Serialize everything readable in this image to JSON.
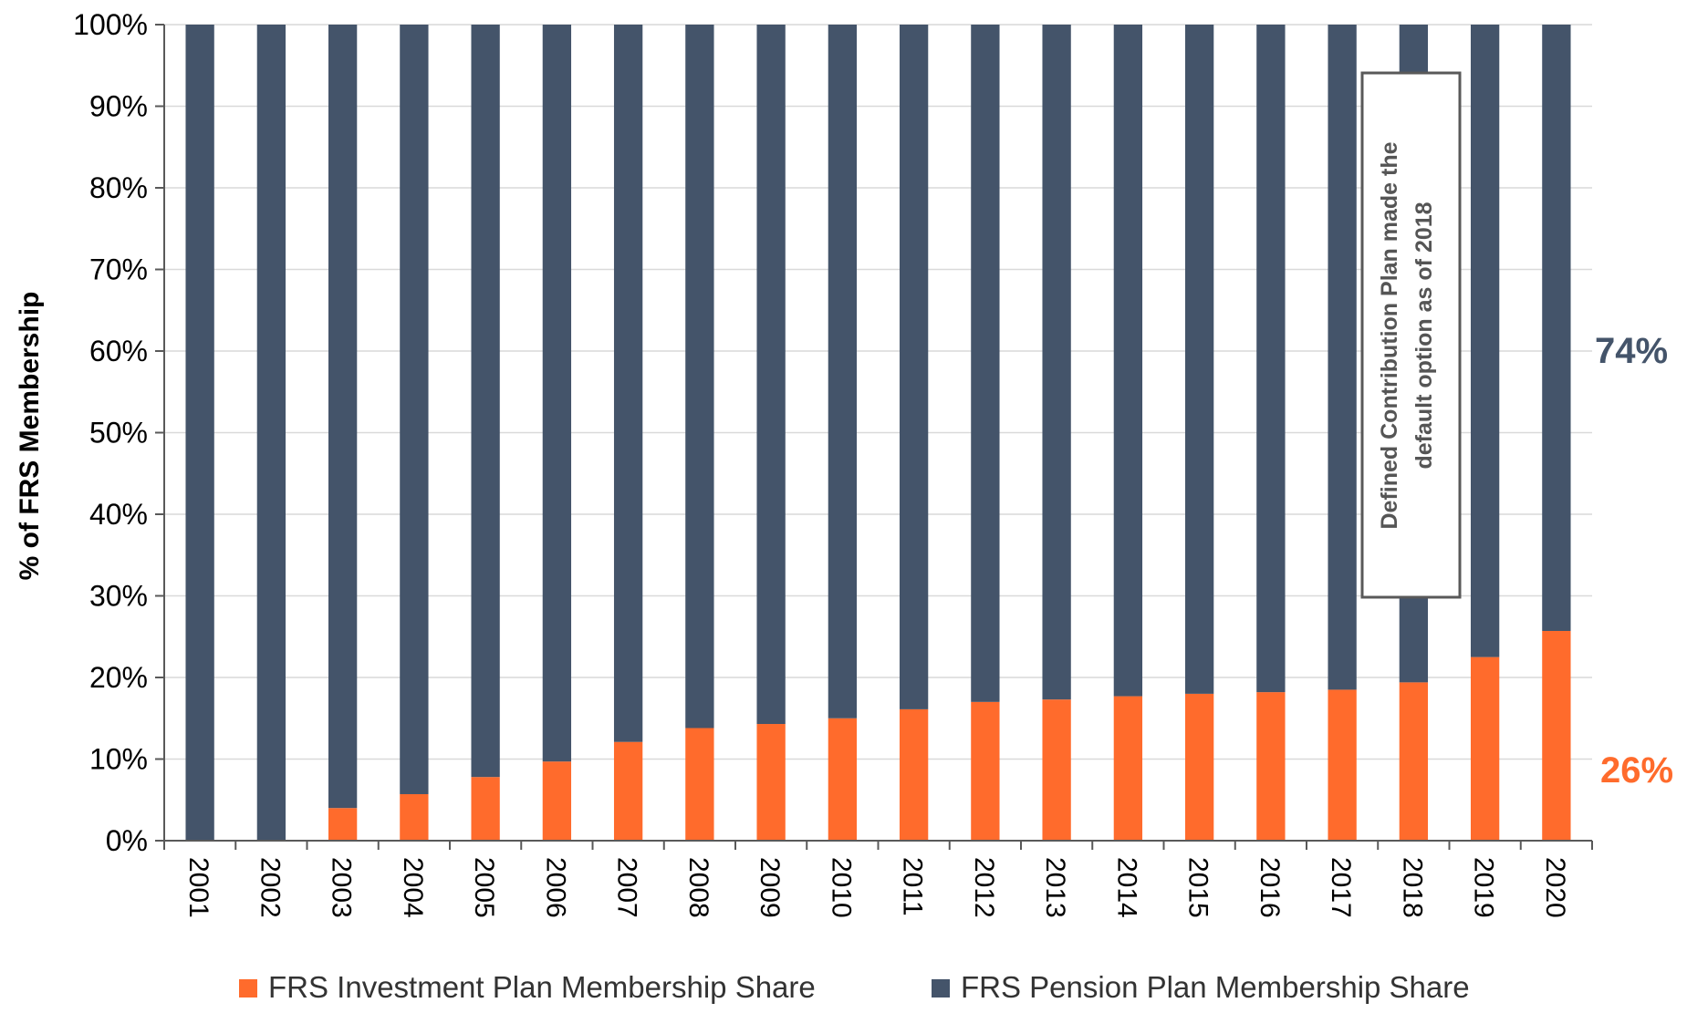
{
  "chart_data": {
    "type": "bar",
    "stacked": true,
    "categories": [
      "2001",
      "2002",
      "2003",
      "2004",
      "2005",
      "2006",
      "2007",
      "2008",
      "2009",
      "2010",
      "2011",
      "2012",
      "2013",
      "2014",
      "2015",
      "2016",
      "2017",
      "2018",
      "2019",
      "2020"
    ],
    "series": [
      {
        "name": "FRS Investment Plan Membership Share",
        "color": "#FF6B2C",
        "values": [
          0,
          0,
          4,
          5.7,
          7.8,
          9.7,
          12.1,
          13.8,
          14.3,
          15,
          16.1,
          17,
          17.3,
          17.7,
          18,
          18.2,
          18.5,
          19.4,
          22.5,
          25.7
        ]
      },
      {
        "name": "FRS Pension Plan Membership Share",
        "color": "#44546A",
        "values": [
          100,
          100,
          96,
          94.3,
          92.2,
          90.3,
          87.9,
          86.2,
          85.7,
          85,
          83.9,
          83,
          82.7,
          82.3,
          82,
          81.8,
          81.5,
          80.6,
          77.5,
          74.3
        ]
      }
    ],
    "ylabel": "% of FRS Membership",
    "ylim": [
      0,
      100
    ],
    "yticks": [
      "0%",
      "10%",
      "20%",
      "30%",
      "40%",
      "50%",
      "60%",
      "70%",
      "80%",
      "90%",
      "100%"
    ],
    "grid": true,
    "legend": "bottom",
    "end_labels": {
      "pension": {
        "text": "74%",
        "color": "#44546A"
      },
      "investment": {
        "text": "26%",
        "color": "#FF6B2C"
      }
    },
    "annotation": {
      "lines": [
        "Defined Contribution Plan made the",
        "default option as of 2018"
      ]
    }
  }
}
